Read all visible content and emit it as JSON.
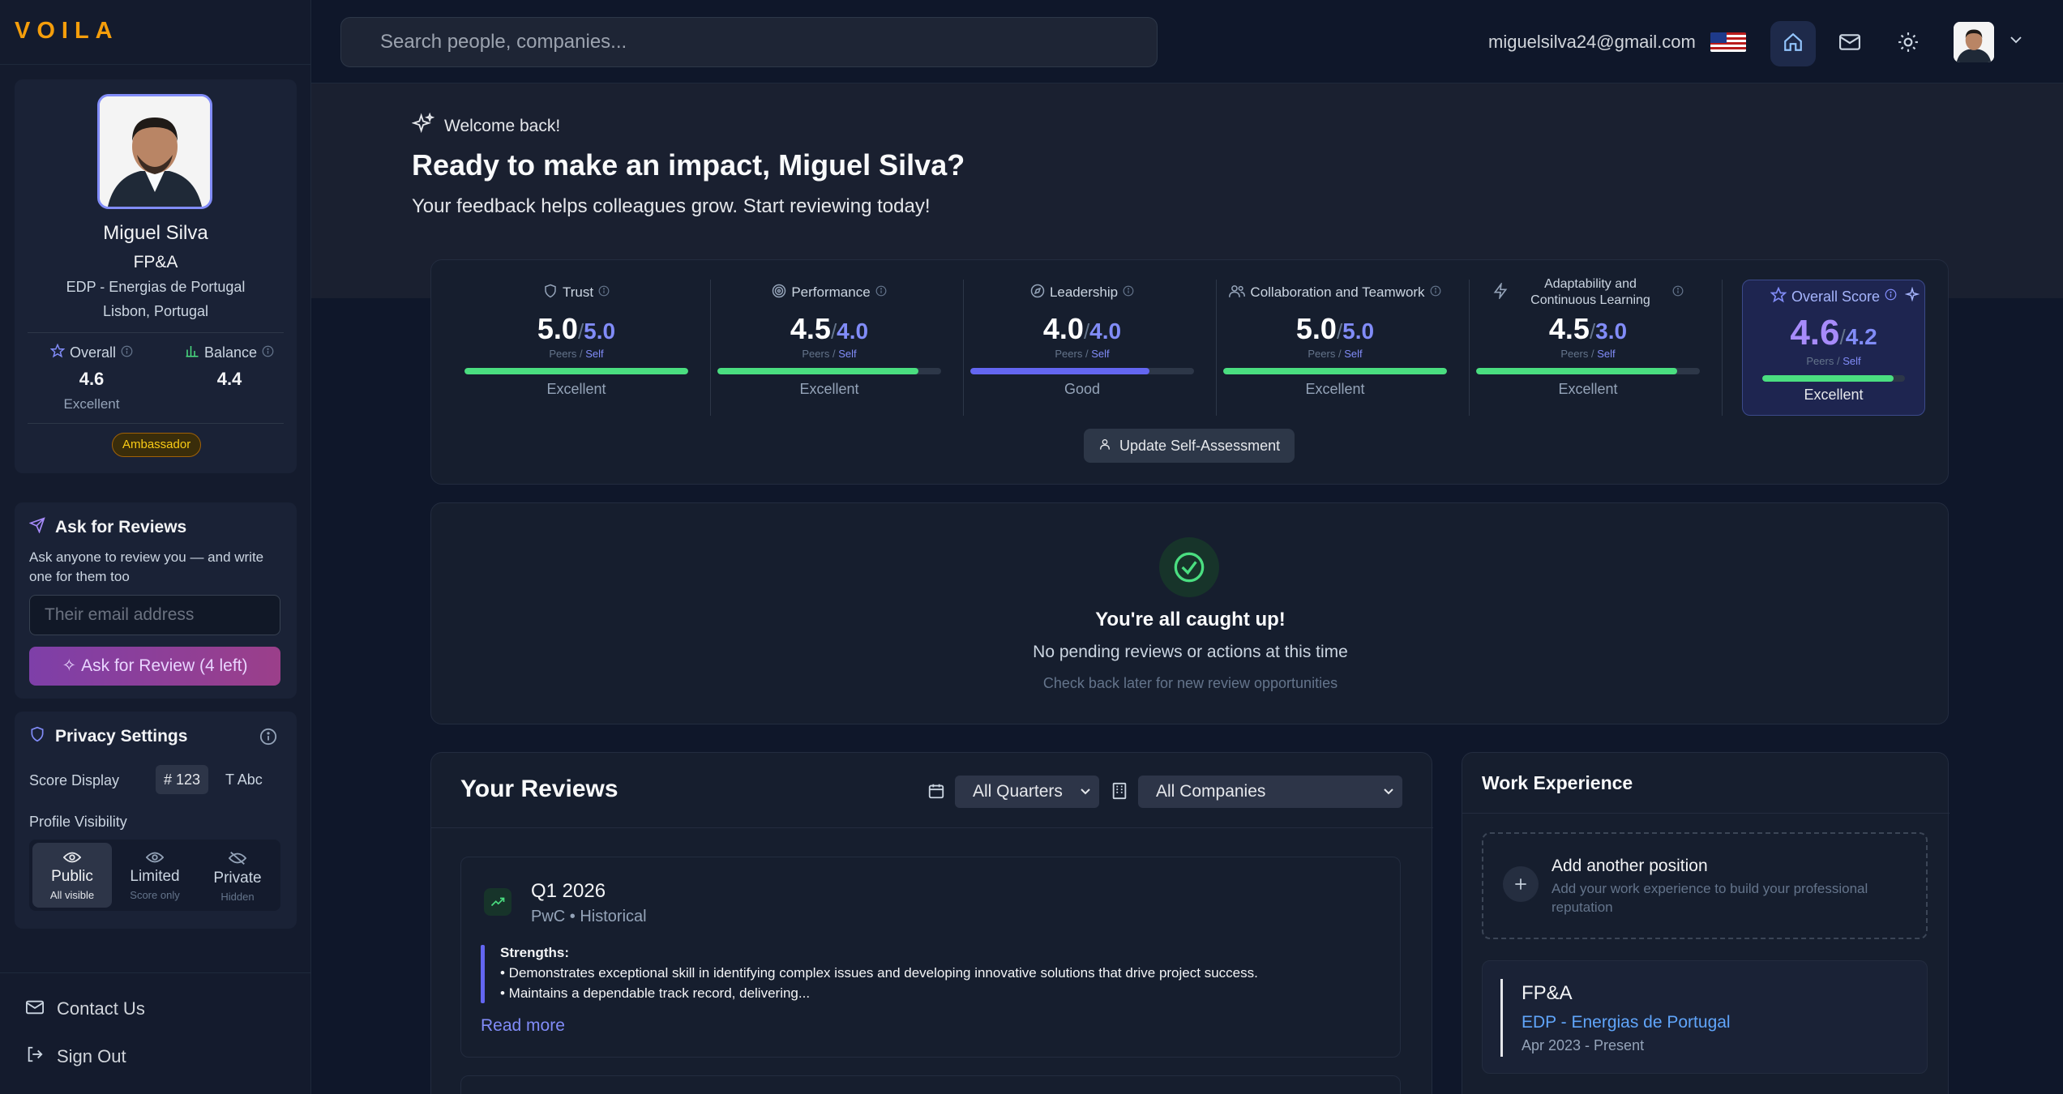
{
  "app": {
    "logo": "VOILA"
  },
  "topbar": {
    "search_placeholder": "Search people, companies...",
    "email": "miguelsilva24@gmail.com",
    "icons": [
      "flag-uk-icon",
      "home-icon",
      "mail-icon",
      "sun-icon",
      "chevron-down-icon"
    ]
  },
  "profile": {
    "name": "Miguel Silva",
    "role": "FP&A",
    "company": "EDP - Energias de Portugal",
    "location": "Lisbon, Portugal",
    "overall_label": "Overall",
    "overall_value": "4.6",
    "overall_rating": "Excellent",
    "balance_label": "Balance",
    "balance_value": "4.4",
    "badge": "Ambassador"
  },
  "ask": {
    "title": "Ask for Reviews",
    "description": "Ask anyone to review you — and write one for them too",
    "email_placeholder": "Their email address",
    "button": "Ask for Review (4 left)"
  },
  "privacy": {
    "title": "Privacy Settings",
    "score_display_label": "Score Display",
    "score_numeric": "123",
    "score_text": "Abc",
    "visibility_label": "Profile Visibility",
    "options": [
      {
        "label": "Public",
        "sub": "All visible",
        "active": true
      },
      {
        "label": "Limited",
        "sub": "Score only",
        "active": false
      },
      {
        "label": "Private",
        "sub": "Hidden",
        "active": false
      }
    ]
  },
  "footer_links": {
    "contact": "Contact Us",
    "signout": "Sign Out"
  },
  "hero": {
    "welcome": "Welcome back!",
    "title": "Ready to make an impact, Miguel Silva?",
    "subtitle": "Your feedback helps colleagues grow. Start reviewing today!"
  },
  "metrics": [
    {
      "label": "Trust",
      "peers": "5.0",
      "self": "5.0",
      "rating": "Excellent",
      "fill": 1.0,
      "color": "#4ade80"
    },
    {
      "label": "Performance",
      "peers": "4.5",
      "self": "4.0",
      "rating": "Excellent",
      "fill": 0.9,
      "color": "#4ade80"
    },
    {
      "label": "Leadership",
      "peers": "4.0",
      "self": "4.0",
      "rating": "Good",
      "fill": 0.8,
      "color": "#6366f1"
    },
    {
      "label": "Collaboration and Teamwork",
      "peers": "5.0",
      "self": "5.0",
      "rating": "Excellent",
      "fill": 1.0,
      "color": "#4ade80"
    },
    {
      "label": "Adaptability and Continuous Learning",
      "peers": "4.5",
      "self": "3.0",
      "rating": "Excellent",
      "fill": 0.9,
      "color": "#4ade80"
    }
  ],
  "metric_common": {
    "peers_label": "Peers",
    "slash": "/",
    "self_label": "Self"
  },
  "overall": {
    "label": "Overall Score",
    "peers": "4.6",
    "self": "4.2",
    "rating": "Excellent",
    "fill": 0.92,
    "color": "#4ade80"
  },
  "update_button": "Update Self-Assessment",
  "caught_up": {
    "title": "You're all caught up!",
    "subtitle": "No pending reviews or actions at this time",
    "note": "Check back later for new review opportunities"
  },
  "reviews": {
    "title": "Your Reviews",
    "quarter_filter": "All Quarters",
    "company_filter": "All Companies",
    "items": [
      {
        "period": "Q1 2026",
        "source": "PwC • Historical",
        "strengths_label": "Strengths:",
        "line1": "• Demonstrates exceptional skill in identifying complex issues and developing innovative solutions that drive project success.",
        "line2": "• Maintains a dependable track record, delivering...",
        "read_more": "Read more"
      }
    ]
  },
  "work": {
    "title": "Work Experience",
    "add_title": "Add another position",
    "add_desc": "Add your work experience to build your professional reputation",
    "positions": [
      {
        "title": "FP&A",
        "company": "EDP - Energias de Portugal",
        "dates": "Apr 2023 - Present"
      }
    ]
  },
  "colors": {
    "accent": "#818cf8",
    "brand": "#f59e0b",
    "good": "#4ade80"
  }
}
